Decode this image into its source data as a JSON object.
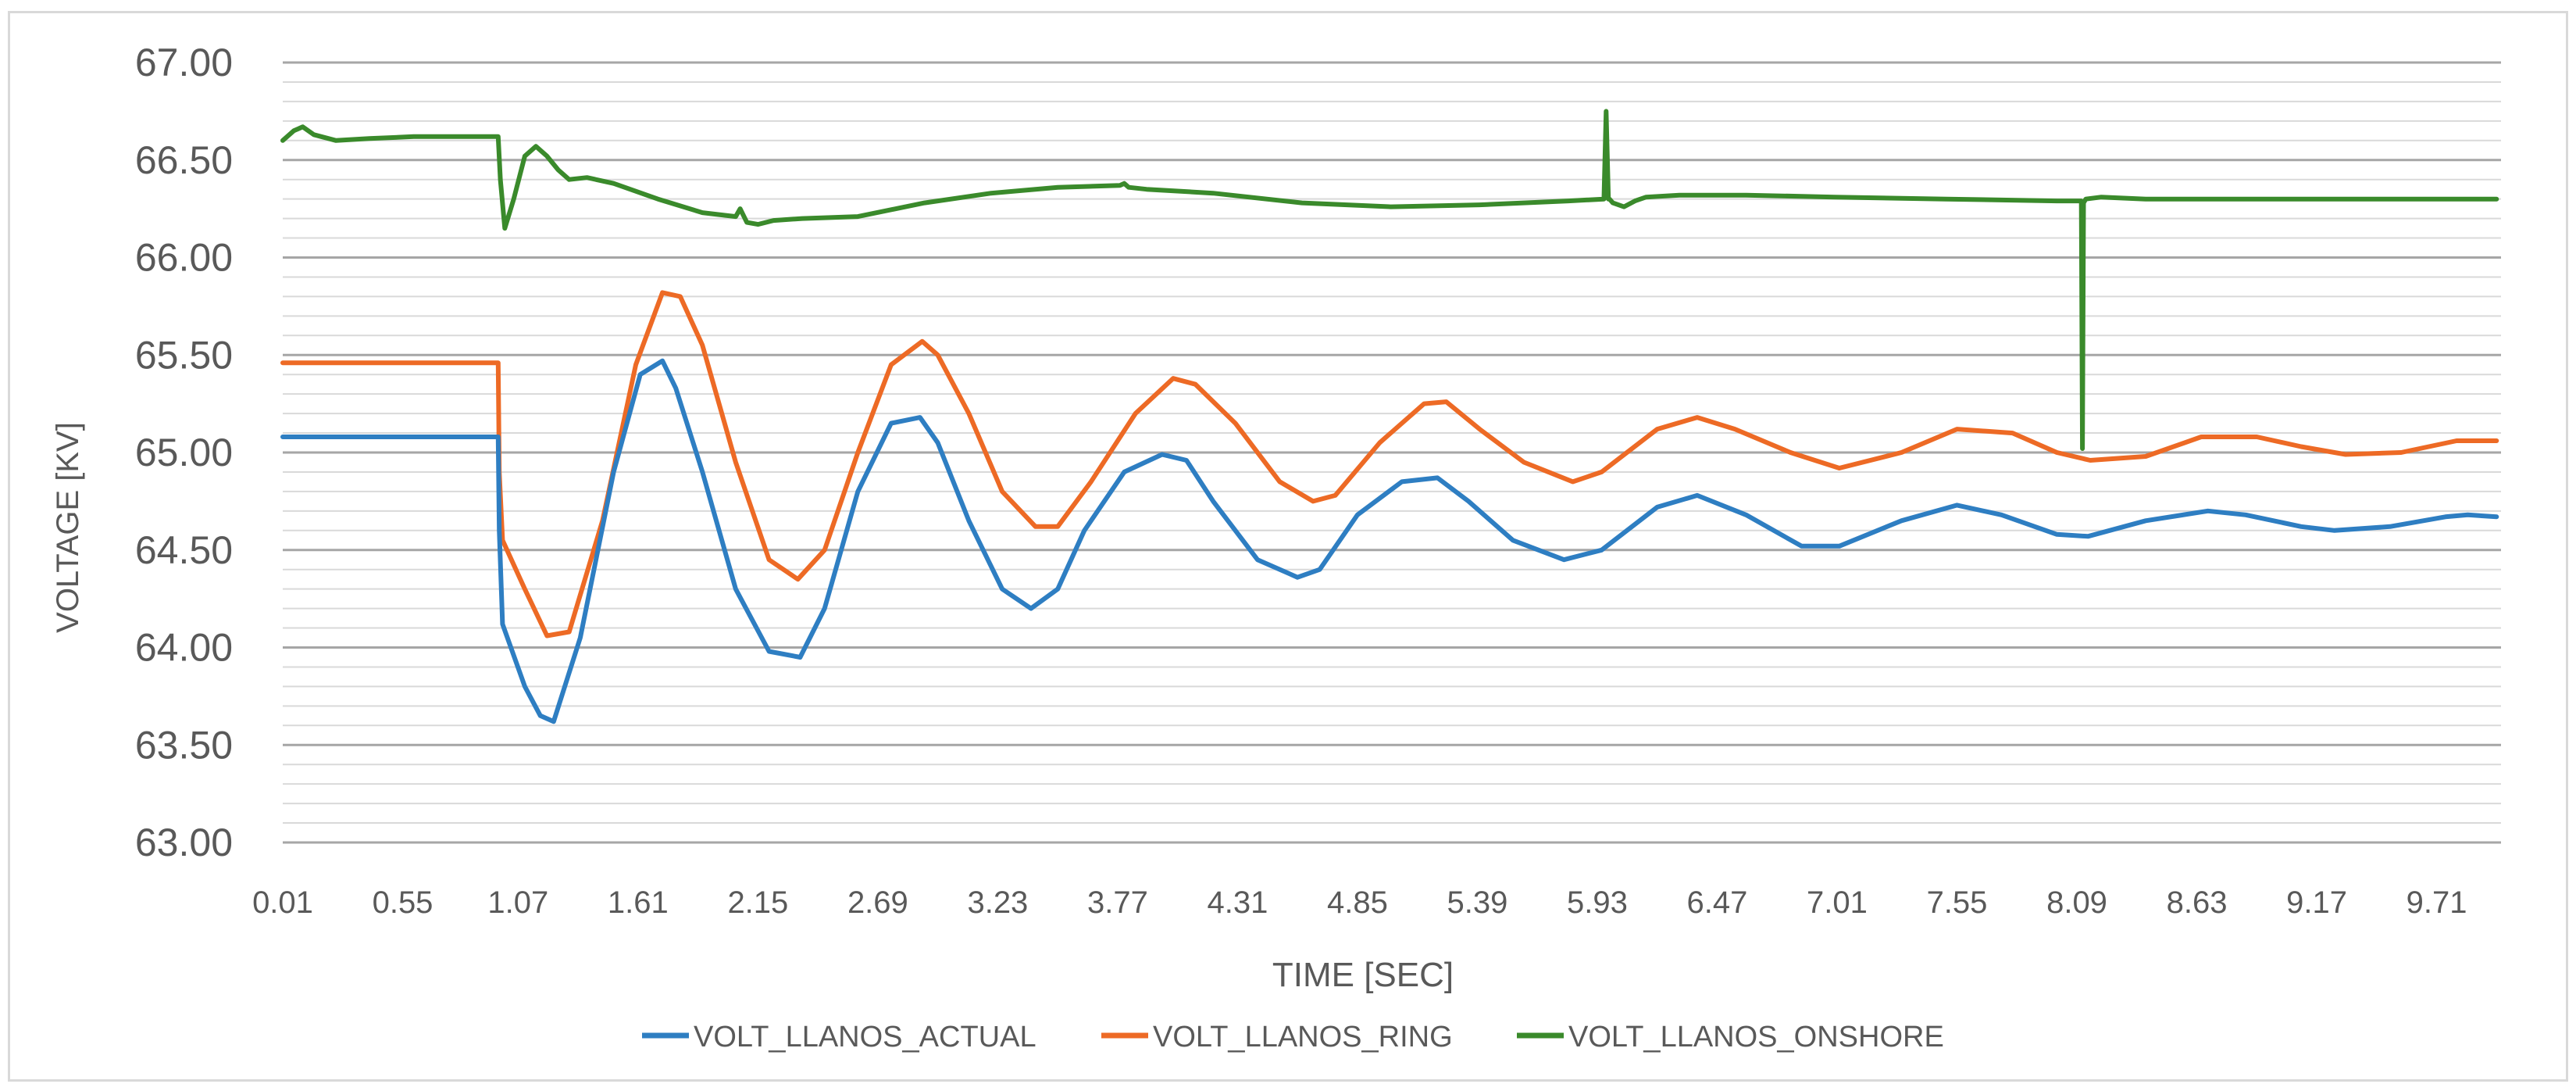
{
  "chart_data": {
    "type": "line",
    "title": "",
    "xlabel": "TIME [SEC]",
    "ylabel": "VOLTAGE [KV]",
    "ylim": [
      63.0,
      67.0
    ],
    "xlim": [
      0.01,
      10.0
    ],
    "y_ticks": [
      "63.00",
      "63.50",
      "64.00",
      "64.50",
      "65.00",
      "65.50",
      "66.00",
      "66.50",
      "67.00"
    ],
    "x_ticks": [
      "0.01",
      "0.55",
      "1.07",
      "1.61",
      "2.15",
      "2.69",
      "3.23",
      "3.77",
      "4.31",
      "4.85",
      "5.39",
      "5.93",
      "6.47",
      "7.01",
      "7.55",
      "8.09",
      "8.63",
      "9.17",
      "9.71"
    ],
    "x_tick_values": [
      0.01,
      0.55,
      1.07,
      1.61,
      2.15,
      2.69,
      3.23,
      3.77,
      4.31,
      4.85,
      5.39,
      5.93,
      6.47,
      7.01,
      7.55,
      8.09,
      8.63,
      9.17,
      9.71
    ],
    "grid": true,
    "minor_grid": true,
    "legend_position": "bottom",
    "series": [
      {
        "name": "VOLT_LLANOS_ACTUAL",
        "color": "#2e7ec2",
        "x": [
          0.01,
          0.98,
          0.985,
          1.0,
          1.1,
          1.17,
          1.23,
          1.35,
          1.5,
          1.62,
          1.72,
          1.78,
          1.9,
          2.05,
          2.2,
          2.34,
          2.45,
          2.6,
          2.75,
          2.88,
          2.96,
          3.1,
          3.25,
          3.38,
          3.5,
          3.62,
          3.8,
          3.97,
          4.08,
          4.2,
          4.4,
          4.58,
          4.68,
          4.85,
          5.05,
          5.21,
          5.35,
          5.55,
          5.78,
          5.95,
          6.2,
          6.38,
          6.6,
          6.85,
          7.02,
          7.3,
          7.55,
          7.75,
          8.0,
          8.14,
          8.4,
          8.68,
          8.85,
          9.1,
          9.25,
          9.5,
          9.75,
          9.85,
          9.98
        ],
        "values": [
          65.08,
          65.08,
          64.6,
          64.12,
          63.8,
          63.65,
          63.62,
          64.05,
          64.9,
          65.4,
          65.47,
          65.33,
          64.9,
          64.3,
          63.98,
          63.95,
          64.2,
          64.8,
          65.15,
          65.18,
          65.05,
          64.65,
          64.3,
          64.2,
          64.3,
          64.6,
          64.9,
          64.99,
          64.96,
          64.75,
          64.45,
          64.36,
          64.4,
          64.68,
          64.85,
          64.87,
          64.75,
          64.55,
          64.45,
          64.5,
          64.72,
          64.78,
          64.68,
          64.52,
          64.52,
          64.65,
          64.73,
          64.68,
          64.58,
          64.57,
          64.65,
          64.7,
          64.68,
          64.62,
          64.6,
          64.62,
          64.67,
          64.68,
          64.67
        ]
      },
      {
        "name": "VOLT_LLANOS_RING",
        "color": "#ed6a25",
        "x": [
          0.01,
          0.98,
          0.985,
          1.0,
          1.1,
          1.2,
          1.3,
          1.45,
          1.6,
          1.72,
          1.8,
          1.9,
          2.05,
          2.2,
          2.33,
          2.45,
          2.6,
          2.75,
          2.89,
          2.96,
          3.1,
          3.25,
          3.4,
          3.5,
          3.65,
          3.85,
          4.02,
          4.12,
          4.3,
          4.5,
          4.65,
          4.75,
          4.95,
          5.15,
          5.25,
          5.4,
          5.6,
          5.82,
          5.95,
          6.2,
          6.38,
          6.55,
          6.8,
          7.02,
          7.3,
          7.55,
          7.8,
          8.0,
          8.15,
          8.4,
          8.65,
          8.9,
          9.1,
          9.3,
          9.55,
          9.8,
          9.98
        ],
        "values": [
          65.46,
          65.46,
          64.9,
          64.55,
          64.3,
          64.06,
          64.08,
          64.65,
          65.45,
          65.82,
          65.8,
          65.55,
          64.95,
          64.45,
          64.35,
          64.5,
          65.0,
          65.45,
          65.57,
          65.5,
          65.2,
          64.8,
          64.62,
          64.62,
          64.85,
          65.2,
          65.38,
          65.35,
          65.15,
          64.85,
          64.75,
          64.78,
          65.05,
          65.25,
          65.26,
          65.12,
          64.95,
          64.85,
          64.9,
          65.12,
          65.18,
          65.12,
          65.0,
          64.92,
          65.0,
          65.12,
          65.1,
          65.0,
          64.96,
          64.98,
          65.08,
          65.08,
          65.03,
          64.99,
          65.0,
          65.06,
          65.06
        ]
      },
      {
        "name": "VOLT_LLANOS_ONSHORE",
        "color": "#3a8a2b",
        "x": [
          0.01,
          0.06,
          0.1,
          0.15,
          0.25,
          0.4,
          0.6,
          0.85,
          0.98,
          0.99,
          1.01,
          1.05,
          1.1,
          1.15,
          1.2,
          1.25,
          1.3,
          1.38,
          1.5,
          1.7,
          1.9,
          2.05,
          2.07,
          2.1,
          2.15,
          2.22,
          2.35,
          2.6,
          2.9,
          3.2,
          3.5,
          3.78,
          3.8,
          3.82,
          3.9,
          4.2,
          4.6,
          5.0,
          5.4,
          5.8,
          5.96,
          5.97,
          5.98,
          5.985,
          6.0,
          6.05,
          6.1,
          6.15,
          6.3,
          6.6,
          7.0,
          7.5,
          8.0,
          8.11,
          8.115,
          8.12,
          8.125,
          8.13,
          8.2,
          8.4,
          9.0,
          9.5,
          9.98
        ],
        "values": [
          66.6,
          66.65,
          66.67,
          66.63,
          66.6,
          66.61,
          66.62,
          66.62,
          66.62,
          66.4,
          66.15,
          66.3,
          66.52,
          66.57,
          66.52,
          66.45,
          66.4,
          66.41,
          66.38,
          66.3,
          66.23,
          66.21,
          66.25,
          66.18,
          66.17,
          66.19,
          66.2,
          66.21,
          66.28,
          66.33,
          66.36,
          66.37,
          66.38,
          66.36,
          66.35,
          66.33,
          66.28,
          66.26,
          66.27,
          66.29,
          66.3,
          66.75,
          66.3,
          66.3,
          66.28,
          66.26,
          66.29,
          66.31,
          66.32,
          66.32,
          66.31,
          66.3,
          66.29,
          66.29,
          65.02,
          66.28,
          66.29,
          66.3,
          66.31,
          66.3,
          66.3,
          66.3,
          66.3
        ]
      }
    ]
  }
}
